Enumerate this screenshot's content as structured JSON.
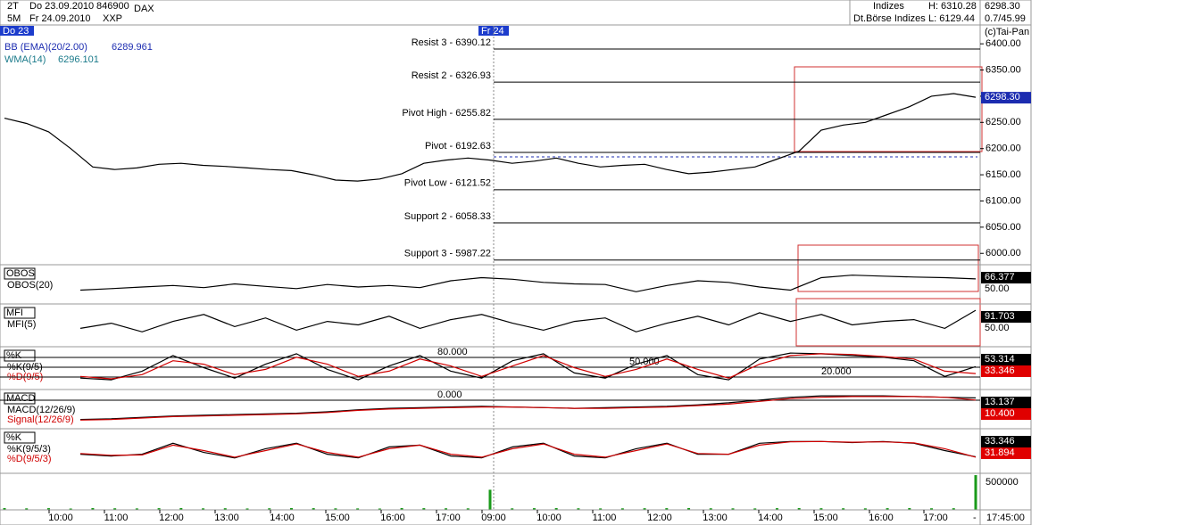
{
  "header": {
    "period": "2T",
    "date1": "Do 23.09.2010",
    "wkn": "846900",
    "name": "DAX",
    "interval": "5M",
    "date2": "Fr 24.09.2010",
    "exchange": "XXP",
    "group": "Indizes",
    "market": "Dt.Börse Indizes",
    "high": "H: 6310.28",
    "low": "L: 6129.44",
    "last": "6298.30",
    "change": "0.7/45.99",
    "copyright": "(c)Tai-Pan"
  },
  "day_labels": [
    "Do 23",
    "Fr 24"
  ],
  "main": {
    "bb_label": "BB (EMA)(20/2.00)",
    "bb_value": "6289.961",
    "wma_label": "WMA(14)",
    "wma_value": "6296.101",
    "ylim": [
      5980,
      6436
    ],
    "yticks": [
      6000,
      6050,
      6100,
      6150,
      6200,
      6250,
      6300,
      6350,
      6400
    ],
    "ytick_labels": [
      "6000.00",
      "6050.00",
      "6100.00",
      "6150.00",
      "6200.00",
      "6250.00",
      "6300.00",
      "6350.00",
      "6400.00"
    ],
    "last_price_label": "6298.30",
    "levels": [
      {
        "label": "Resist 3 - 6390.12",
        "value": 6390.12
      },
      {
        "label": "Resist 2 - 6326.93",
        "value": 6326.93
      },
      {
        "label": "Pivot High - 6255.82",
        "value": 6255.82
      },
      {
        "label": "Pivot - 6192.63",
        "value": 6192.63
      },
      {
        "label": "Pivot Low - 6121.52",
        "value": 6121.52
      },
      {
        "label": "Support 2 - 6058.33",
        "value": 6058.33
      },
      {
        "label": "Support 3 - 5987.22",
        "value": 5987.22
      }
    ],
    "price": [
      6258,
      6248,
      6232,
      6200,
      6165,
      6160,
      6163,
      6170,
      6172,
      6168,
      6166,
      6163,
      6160,
      6158,
      6150,
      6140,
      6138,
      6142,
      6152,
      6172,
      6178,
      6182,
      6178,
      6172,
      6176,
      6182,
      6172,
      6165,
      6168,
      6170,
      6160,
      6152,
      6155,
      6160,
      6165,
      6180,
      6195,
      6235,
      6245,
      6250,
      6265,
      6280,
      6300,
      6305,
      6298
    ]
  },
  "panels": [
    {
      "button": "OBOS",
      "label": "OBOS(20)",
      "ylim": [
        0,
        100
      ],
      "right": [
        "66.377",
        "50.00"
      ],
      "series": [
        {
          "color": "#000000",
          "values": [
            30,
            35,
            40,
            45,
            38,
            50,
            42,
            35,
            48,
            40,
            45,
            38,
            60,
            70,
            65,
            55,
            50,
            48,
            25,
            45,
            60,
            55,
            40,
            30,
            70,
            78,
            75,
            72,
            70,
            66
          ]
        }
      ]
    },
    {
      "button": "MFI",
      "label": "MFI(5)",
      "ylim": [
        0,
        100
      ],
      "right": [
        "91.703",
        "50.00"
      ],
      "series": [
        {
          "color": "#000000",
          "values": [
            40,
            55,
            30,
            60,
            80,
            45,
            70,
            35,
            60,
            50,
            75,
            40,
            65,
            80,
            55,
            35,
            60,
            70,
            30,
            55,
            75,
            50,
            85,
            60,
            80,
            50,
            60,
            65,
            40,
            92
          ]
        }
      ]
    },
    {
      "button": "%K",
      "label": "%K(9/5)",
      "label2": "%D(9/5)",
      "ylim": [
        0,
        100
      ],
      "right": [
        "53.314",
        "33.346"
      ],
      "levels": [
        "80.000",
        "50.000",
        "20.000"
      ],
      "series": [
        {
          "color": "#000000",
          "values": [
            20,
            15,
            40,
            85,
            50,
            20,
            60,
            90,
            45,
            15,
            55,
            85,
            40,
            20,
            70,
            90,
            35,
            20,
            60,
            85,
            30,
            15,
            75,
            92,
            90,
            85,
            80,
            70,
            25,
            53
          ]
        },
        {
          "color": "#d00000",
          "values": [
            25,
            18,
            30,
            70,
            60,
            30,
            45,
            80,
            60,
            25,
            40,
            75,
            55,
            25,
            55,
            85,
            50,
            25,
            45,
            75,
            45,
            20,
            60,
            85,
            90,
            88,
            82,
            75,
            40,
            33
          ]
        }
      ]
    },
    {
      "button": "MACD",
      "label": "MACD(12/26/9)",
      "label2": "Signal(12/26/9)",
      "ylim": [
        -25,
        20
      ],
      "right": [
        "13.137",
        "10.400"
      ],
      "levels": [
        "0.000"
      ],
      "series": [
        {
          "color": "#000000",
          "values": [
            -18,
            -17,
            -15,
            -13,
            -12,
            -11,
            -10,
            -9,
            -7,
            -4,
            -2,
            -1,
            0,
            1,
            0,
            -1,
            -2,
            -1,
            0,
            1,
            3,
            6,
            10,
            14,
            16,
            16,
            16,
            15,
            14,
            13
          ]
        },
        {
          "color": "#d00000",
          "values": [
            -19,
            -18,
            -16,
            -14,
            -13,
            -12,
            -11,
            -10,
            -8,
            -5,
            -3,
            -2,
            -1,
            0,
            0,
            -1,
            -2,
            -2,
            -1,
            0,
            2,
            4,
            8,
            12,
            14,
            15,
            15,
            15,
            14,
            10
          ]
        }
      ]
    },
    {
      "button": "%K",
      "label": "%K(9/5/3)",
      "label2": "%D(9/5/3)",
      "ylim": [
        0,
        100
      ],
      "right": [
        "33.346",
        "31.894"
      ],
      "series": [
        {
          "color": "#000000",
          "values": [
            40,
            35,
            40,
            70,
            45,
            30,
            55,
            70,
            40,
            30,
            60,
            65,
            35,
            30,
            60,
            70,
            35,
            30,
            55,
            70,
            40,
            40,
            70,
            75,
            75,
            72,
            75,
            70,
            50,
            33
          ]
        },
        {
          "color": "#d00000",
          "values": [
            42,
            37,
            38,
            65,
            50,
            32,
            50,
            68,
            45,
            32,
            55,
            65,
            40,
            32,
            55,
            68,
            40,
            32,
            50,
            68,
            42,
            40,
            65,
            74,
            75,
            73,
            74,
            71,
            55,
            32
          ]
        }
      ]
    }
  ],
  "volume": {
    "ylim": [
      0,
      600000
    ],
    "tick": "500000",
    "values": [
      30000,
      25000,
      28000,
      22000,
      30000,
      26000,
      24000,
      28000,
      30000,
      25000,
      27000,
      23000,
      26000,
      30000,
      28000,
      25000,
      24000,
      22000,
      30000,
      28000,
      26000,
      25000,
      330000,
      25000,
      28000,
      30000,
      26000,
      24000,
      25000,
      27000,
      28000,
      30000,
      26000,
      25000,
      24000,
      28000,
      30000,
      27000,
      26000,
      25000,
      28000,
      30000,
      26000,
      27000,
      570000
    ]
  },
  "time_axis": [
    "10:00",
    "11:00",
    "12:00",
    "13:00",
    "14:00",
    "15:00",
    "16:00",
    "17:00",
    "09:00",
    "10:00",
    "11:00",
    "12:00",
    "13:00",
    "14:00",
    "15:00",
    "16:00",
    "17:00"
  ],
  "time_end": "-",
  "clock": "17:45:00"
}
